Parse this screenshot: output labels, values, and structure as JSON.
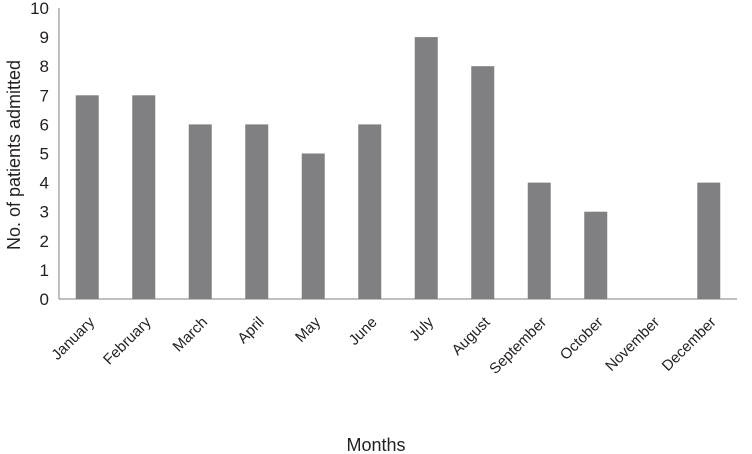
{
  "chart_data": {
    "type": "bar",
    "categories": [
      "January",
      "February",
      "March",
      "April",
      "May",
      "June",
      "July",
      "August",
      "September",
      "October",
      "November",
      "December"
    ],
    "values": [
      7,
      7,
      6,
      6,
      5,
      6,
      9,
      8,
      4,
      3,
      0,
      4
    ],
    "title": "",
    "xlabel": "Months",
    "ylabel": "No. of patients admitted",
    "ylim": [
      0,
      10
    ],
    "yticks": [
      0,
      1,
      2,
      3,
      4,
      5,
      6,
      7,
      8,
      9,
      10
    ],
    "grid": false,
    "legend": "none",
    "colors": {
      "bar": "#808083",
      "axis": "#808083",
      "text": "#231f20"
    }
  }
}
